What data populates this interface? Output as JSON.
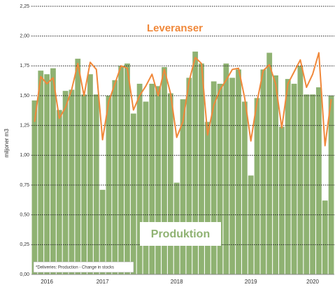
{
  "chart_data": {
    "type": "bar_line",
    "y_axis_label": "miljoner m3",
    "note": "*Deliveries: Production - Change in stocks",
    "categories": [
      null,
      null,
      "2016",
      null,
      null,
      null,
      null,
      null,
      null,
      null,
      null,
      "2017",
      null,
      null,
      null,
      null,
      null,
      null,
      null,
      null,
      null,
      null,
      null,
      "2018",
      null,
      null,
      null,
      null,
      null,
      null,
      null,
      null,
      null,
      null,
      null,
      "2019",
      null,
      null,
      null,
      null,
      null,
      null,
      null,
      null,
      null,
      "2020",
      null,
      null,
      null
    ],
    "series": [
      {
        "name": "Produktion",
        "color": "#8fb272",
        "values": [
          1.46,
          1.71,
          1.68,
          1.73,
          1.38,
          1.54,
          1.55,
          1.81,
          1.51,
          1.68,
          1.51,
          0.71,
          1.5,
          1.63,
          1.75,
          1.77,
          1.35,
          1.6,
          1.45,
          1.6,
          1.58,
          1.74,
          1.52,
          0.77,
          1.47,
          1.65,
          1.87,
          1.77,
          1.28,
          1.62,
          1.6,
          1.77,
          1.65,
          1.72,
          1.45,
          0.83,
          1.48,
          1.72,
          1.86,
          1.67,
          1.24,
          1.64,
          1.6,
          1.75,
          1.51,
          1.51,
          1.57,
          0.62,
          1.5
        ]
      },
      {
        "name": "Leveranser",
        "color": "#f0883a",
        "values": [
          1.28,
          1.66,
          1.6,
          1.65,
          1.31,
          1.4,
          1.55,
          1.77,
          1.5,
          1.78,
          1.72,
          1.13,
          1.45,
          1.6,
          1.75,
          1.73,
          1.38,
          1.5,
          1.58,
          1.68,
          1.5,
          1.72,
          1.52,
          1.15,
          1.28,
          1.62,
          1.82,
          1.77,
          1.17,
          1.42,
          1.55,
          1.63,
          1.72,
          1.73,
          1.48,
          1.12,
          1.45,
          1.71,
          1.76,
          1.6,
          1.23,
          1.6,
          1.7,
          1.8,
          1.57,
          1.68,
          1.86,
          1.08,
          1.47
        ]
      }
    ],
    "ylim": [
      0,
      2.25
    ],
    "yticks": [
      {
        "value": 0,
        "label": "0,00"
      },
      {
        "value": 0.25,
        "label": "0,25"
      },
      {
        "value": 0.5,
        "label": "0,50"
      },
      {
        "value": 0.75,
        "label": "0,75"
      },
      {
        "value": 1,
        "label": "1,00"
      },
      {
        "value": 1.25,
        "label": "1,25"
      },
      {
        "value": 1.5,
        "label": "1,50"
      },
      {
        "value": 1.75,
        "label": "1,75"
      },
      {
        "value": 2,
        "label": "2,00"
      },
      {
        "value": 2.25,
        "label": "2,25"
      }
    ],
    "grid": true
  }
}
